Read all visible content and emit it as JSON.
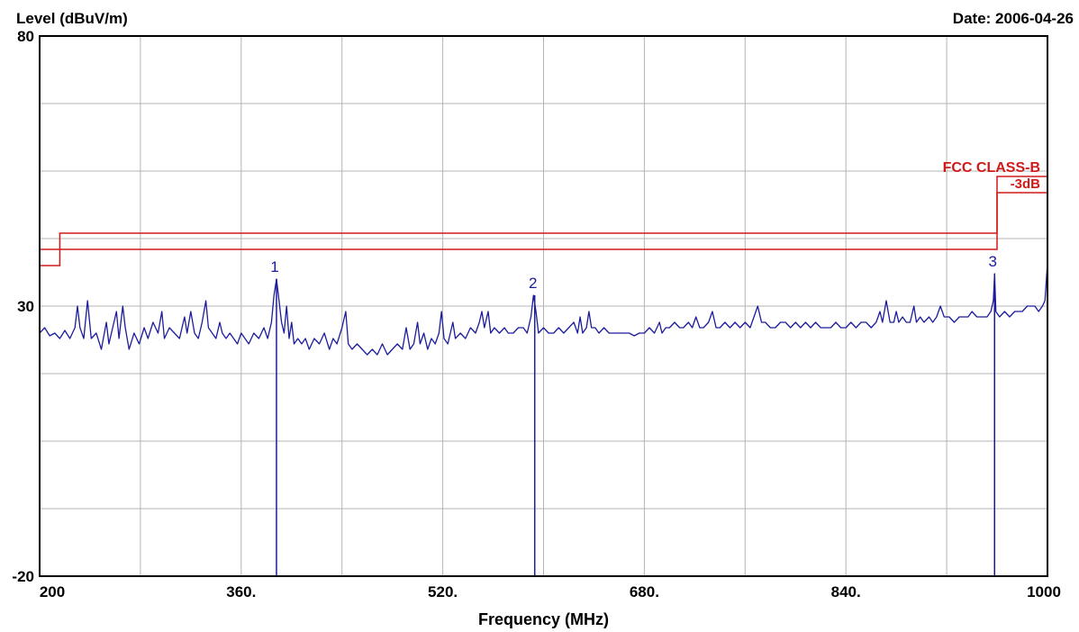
{
  "chart_data": {
    "type": "line",
    "title_left": "Level (dBuV/m)",
    "date": "Date: 2006-04-26",
    "xlabel": "Frequency (MHz)",
    "x_ticks": [
      {
        "value": 200,
        "label": "200"
      },
      {
        "value": 360,
        "label": "360."
      },
      {
        "value": 520,
        "label": "520."
      },
      {
        "value": 680,
        "label": "680."
      },
      {
        "value": 840,
        "label": "840."
      },
      {
        "value": 1000,
        "label": "1000"
      }
    ],
    "y_ticks": [
      {
        "value": 80,
        "label": "80"
      },
      {
        "value": 30,
        "label": "30"
      },
      {
        "value": -20,
        "label": "-20"
      }
    ],
    "xlim": [
      200,
      1000
    ],
    "ylim": [
      -20,
      80
    ],
    "grid": true,
    "colors": {
      "trace": "#1c1c9c",
      "limit": "#d01a1a",
      "grid": "#b4b4b4",
      "frame": "#000000"
    },
    "limit_lines": [
      {
        "label": "FCC CLASS-B",
        "points": [
          [
            200,
            40.5
          ],
          [
            216,
            40.5
          ],
          [
            216,
            43.5
          ],
          [
            960,
            43.5
          ],
          [
            960,
            54
          ],
          [
            1000,
            54
          ]
        ]
      },
      {
        "label": "-3dB",
        "points": [
          [
            200,
            37.5
          ],
          [
            216,
            37.5
          ],
          [
            216,
            40.5
          ],
          [
            960,
            40.5
          ],
          [
            960,
            51
          ],
          [
            1000,
            51
          ]
        ]
      }
    ],
    "markers": [
      {
        "label": "1",
        "x": 388,
        "y": 35
      },
      {
        "label": "2",
        "x": 593,
        "y": 32
      },
      {
        "label": "3",
        "x": 958,
        "y": 36
      }
    ],
    "series": [
      {
        "values": [
          [
            200,
            25
          ],
          [
            204,
            26
          ],
          [
            208,
            24.5
          ],
          [
            212,
            25
          ],
          [
            216,
            24
          ],
          [
            220,
            25.5
          ],
          [
            224,
            24
          ],
          [
            228,
            26
          ],
          [
            230,
            30
          ],
          [
            232,
            26
          ],
          [
            235,
            24
          ],
          [
            238,
            31
          ],
          [
            241,
            24
          ],
          [
            245,
            25
          ],
          [
            249,
            22
          ],
          [
            253,
            27
          ],
          [
            255,
            23
          ],
          [
            258,
            26
          ],
          [
            261,
            29
          ],
          [
            263,
            24
          ],
          [
            266,
            30
          ],
          [
            268,
            26
          ],
          [
            271,
            22
          ],
          [
            275,
            25
          ],
          [
            279,
            23
          ],
          [
            283,
            26
          ],
          [
            286,
            24
          ],
          [
            290,
            27
          ],
          [
            294,
            25
          ],
          [
            297,
            29
          ],
          [
            299,
            24
          ],
          [
            303,
            26
          ],
          [
            307,
            25
          ],
          [
            311,
            24
          ],
          [
            315,
            28
          ],
          [
            317,
            25
          ],
          [
            320,
            29
          ],
          [
            323,
            25
          ],
          [
            326,
            24
          ],
          [
            329,
            27
          ],
          [
            332,
            31
          ],
          [
            334,
            26
          ],
          [
            337,
            25
          ],
          [
            340,
            24
          ],
          [
            343,
            27
          ],
          [
            345,
            25
          ],
          [
            348,
            24
          ],
          [
            351,
            25
          ],
          [
            354,
            24
          ],
          [
            357,
            23
          ],
          [
            360,
            25
          ],
          [
            363,
            24
          ],
          [
            366,
            23
          ],
          [
            370,
            25
          ],
          [
            374,
            24
          ],
          [
            378,
            26
          ],
          [
            381,
            24
          ],
          [
            384,
            27
          ],
          [
            386,
            32
          ],
          [
            388,
            35
          ],
          [
            390,
            31
          ],
          [
            392,
            27
          ],
          [
            394,
            25
          ],
          [
            396,
            30
          ],
          [
            398,
            24
          ],
          [
            400,
            27
          ],
          [
            402,
            23
          ],
          [
            405,
            24
          ],
          [
            408,
            23
          ],
          [
            411,
            24
          ],
          [
            414,
            22
          ],
          [
            418,
            24
          ],
          [
            422,
            23
          ],
          [
            426,
            25
          ],
          [
            430,
            22
          ],
          [
            433,
            24
          ],
          [
            436,
            23
          ],
          [
            440,
            26
          ],
          [
            443,
            29
          ],
          [
            445,
            23
          ],
          [
            448,
            22
          ],
          [
            452,
            23
          ],
          [
            456,
            22
          ],
          [
            460,
            21
          ],
          [
            464,
            22
          ],
          [
            468,
            21
          ],
          [
            472,
            23
          ],
          [
            476,
            21
          ],
          [
            480,
            22
          ],
          [
            484,
            23
          ],
          [
            488,
            22
          ],
          [
            491,
            26
          ],
          [
            494,
            22
          ],
          [
            497,
            23
          ],
          [
            500,
            27
          ],
          [
            502,
            23
          ],
          [
            505,
            25
          ],
          [
            508,
            22
          ],
          [
            511,
            24
          ],
          [
            514,
            23
          ],
          [
            517,
            25
          ],
          [
            519,
            29
          ],
          [
            521,
            24
          ],
          [
            524,
            23
          ],
          [
            528,
            27
          ],
          [
            530,
            24
          ],
          [
            534,
            25
          ],
          [
            538,
            24
          ],
          [
            542,
            26
          ],
          [
            546,
            25
          ],
          [
            549,
            27
          ],
          [
            551,
            29
          ],
          [
            553,
            26
          ],
          [
            556,
            29
          ],
          [
            558,
            25
          ],
          [
            561,
            26
          ],
          [
            565,
            25
          ],
          [
            569,
            26
          ],
          [
            572,
            25
          ],
          [
            576,
            25
          ],
          [
            580,
            26
          ],
          [
            584,
            26
          ],
          [
            587,
            25
          ],
          [
            590,
            28
          ],
          [
            592,
            32
          ],
          [
            594,
            29
          ],
          [
            596,
            25
          ],
          [
            600,
            26
          ],
          [
            604,
            25
          ],
          [
            608,
            25
          ],
          [
            612,
            26
          ],
          [
            616,
            25
          ],
          [
            620,
            26
          ],
          [
            624,
            27
          ],
          [
            627,
            25
          ],
          [
            629,
            28
          ],
          [
            631,
            25
          ],
          [
            634,
            26
          ],
          [
            636,
            29
          ],
          [
            638,
            26
          ],
          [
            641,
            26
          ],
          [
            644,
            25
          ],
          [
            648,
            26
          ],
          [
            652,
            25
          ],
          [
            656,
            25
          ],
          [
            660,
            25
          ],
          [
            664,
            25
          ],
          [
            668,
            25
          ],
          [
            672,
            24.5
          ],
          [
            676,
            25
          ],
          [
            680,
            25
          ],
          [
            684,
            26
          ],
          [
            688,
            25
          ],
          [
            692,
            27
          ],
          [
            694,
            25
          ],
          [
            697,
            26
          ],
          [
            700,
            26
          ],
          [
            704,
            27
          ],
          [
            708,
            26
          ],
          [
            711,
            26
          ],
          [
            715,
            27
          ],
          [
            718,
            26
          ],
          [
            721,
            28
          ],
          [
            724,
            26
          ],
          [
            727,
            26
          ],
          [
            731,
            27
          ],
          [
            734,
            29
          ],
          [
            737,
            26
          ],
          [
            740,
            26
          ],
          [
            744,
            27
          ],
          [
            748,
            26
          ],
          [
            752,
            27
          ],
          [
            756,
            26
          ],
          [
            760,
            27
          ],
          [
            764,
            26
          ],
          [
            767,
            28
          ],
          [
            770,
            30
          ],
          [
            773,
            27
          ],
          [
            776,
            27
          ],
          [
            780,
            26
          ],
          [
            784,
            26
          ],
          [
            788,
            27
          ],
          [
            792,
            27
          ],
          [
            796,
            26
          ],
          [
            800,
            27
          ],
          [
            804,
            26
          ],
          [
            808,
            27
          ],
          [
            812,
            26
          ],
          [
            816,
            27
          ],
          [
            820,
            26
          ],
          [
            824,
            26
          ],
          [
            828,
            26
          ],
          [
            832,
            27
          ],
          [
            836,
            26
          ],
          [
            840,
            26
          ],
          [
            844,
            27
          ],
          [
            848,
            26
          ],
          [
            852,
            27
          ],
          [
            856,
            27
          ],
          [
            860,
            26
          ],
          [
            864,
            27
          ],
          [
            867,
            29
          ],
          [
            869,
            27
          ],
          [
            872,
            31
          ],
          [
            875,
            27
          ],
          [
            878,
            27
          ],
          [
            880,
            29
          ],
          [
            882,
            27
          ],
          [
            885,
            28
          ],
          [
            888,
            27
          ],
          [
            891,
            27
          ],
          [
            894,
            30
          ],
          [
            896,
            27
          ],
          [
            899,
            28
          ],
          [
            902,
            27
          ],
          [
            906,
            28
          ],
          [
            909,
            27
          ],
          [
            912,
            28
          ],
          [
            915,
            30
          ],
          [
            918,
            28
          ],
          [
            922,
            28
          ],
          [
            926,
            27
          ],
          [
            930,
            28
          ],
          [
            934,
            28
          ],
          [
            937,
            28
          ],
          [
            940,
            29
          ],
          [
            944,
            28
          ],
          [
            948,
            28
          ],
          [
            952,
            28
          ],
          [
            955,
            29
          ],
          [
            957,
            31
          ],
          [
            958,
            36
          ],
          [
            959,
            29
          ],
          [
            962,
            28
          ],
          [
            966,
            29
          ],
          [
            970,
            28
          ],
          [
            974,
            29
          ],
          [
            977,
            29
          ],
          [
            980,
            29
          ],
          [
            984,
            30
          ],
          [
            987,
            30
          ],
          [
            990,
            30
          ],
          [
            993,
            29
          ],
          [
            996,
            30
          ],
          [
            998,
            31
          ],
          [
            1000,
            38
          ]
        ]
      }
    ]
  }
}
